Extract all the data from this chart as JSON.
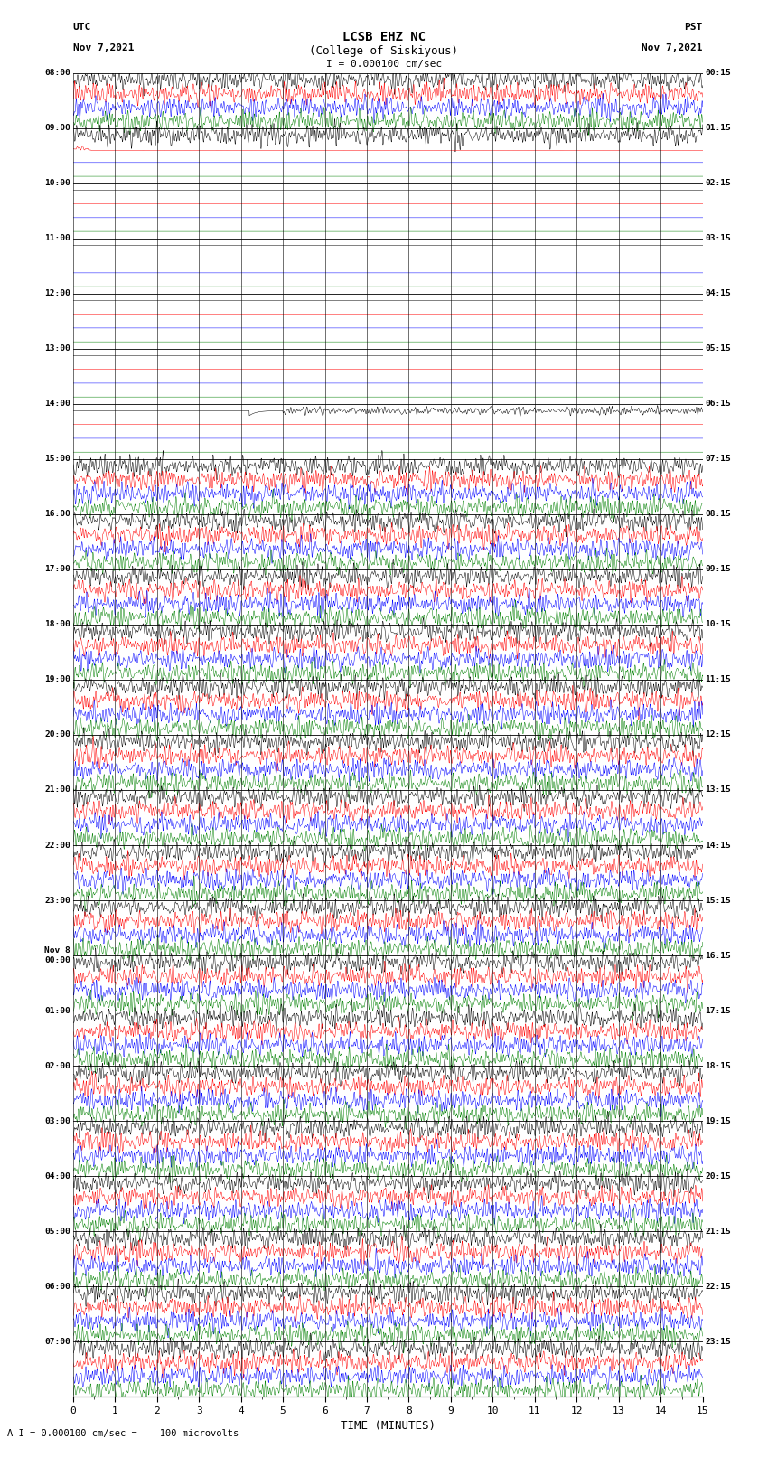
{
  "title_line1": "LCSB EHZ NC",
  "title_line2": "(College of Siskiyous)",
  "scale_label": "I = 0.000100 cm/sec",
  "bottom_label": "A I = 0.000100 cm/sec =    100 microvolts",
  "xlabel": "TIME (MINUTES)",
  "left_times": [
    "08:00",
    "09:00",
    "10:00",
    "11:00",
    "12:00",
    "13:00",
    "14:00",
    "15:00",
    "16:00",
    "17:00",
    "18:00",
    "19:00",
    "20:00",
    "21:00",
    "22:00",
    "23:00",
    "Nov 8\n00:00",
    "01:00",
    "02:00",
    "03:00",
    "04:00",
    "05:00",
    "06:00",
    "07:00"
  ],
  "right_times": [
    "00:15",
    "01:15",
    "02:15",
    "03:15",
    "04:15",
    "05:15",
    "06:15",
    "07:15",
    "08:15",
    "09:15",
    "10:15",
    "11:15",
    "12:15",
    "13:15",
    "14:15",
    "15:15",
    "16:15",
    "17:15",
    "18:15",
    "19:15",
    "20:15",
    "21:15",
    "22:15",
    "23:15"
  ],
  "num_rows": 24,
  "traces_per_row": 4,
  "colors_active": [
    "black",
    "red",
    "blue",
    "green"
  ],
  "fig_width": 8.5,
  "fig_height": 16.13,
  "dpi": 100,
  "x_min": 0,
  "x_max": 15,
  "background": "white",
  "samples": 3000,
  "active_amp": 0.32,
  "quiet_amp": 0.015,
  "lw": 0.35
}
